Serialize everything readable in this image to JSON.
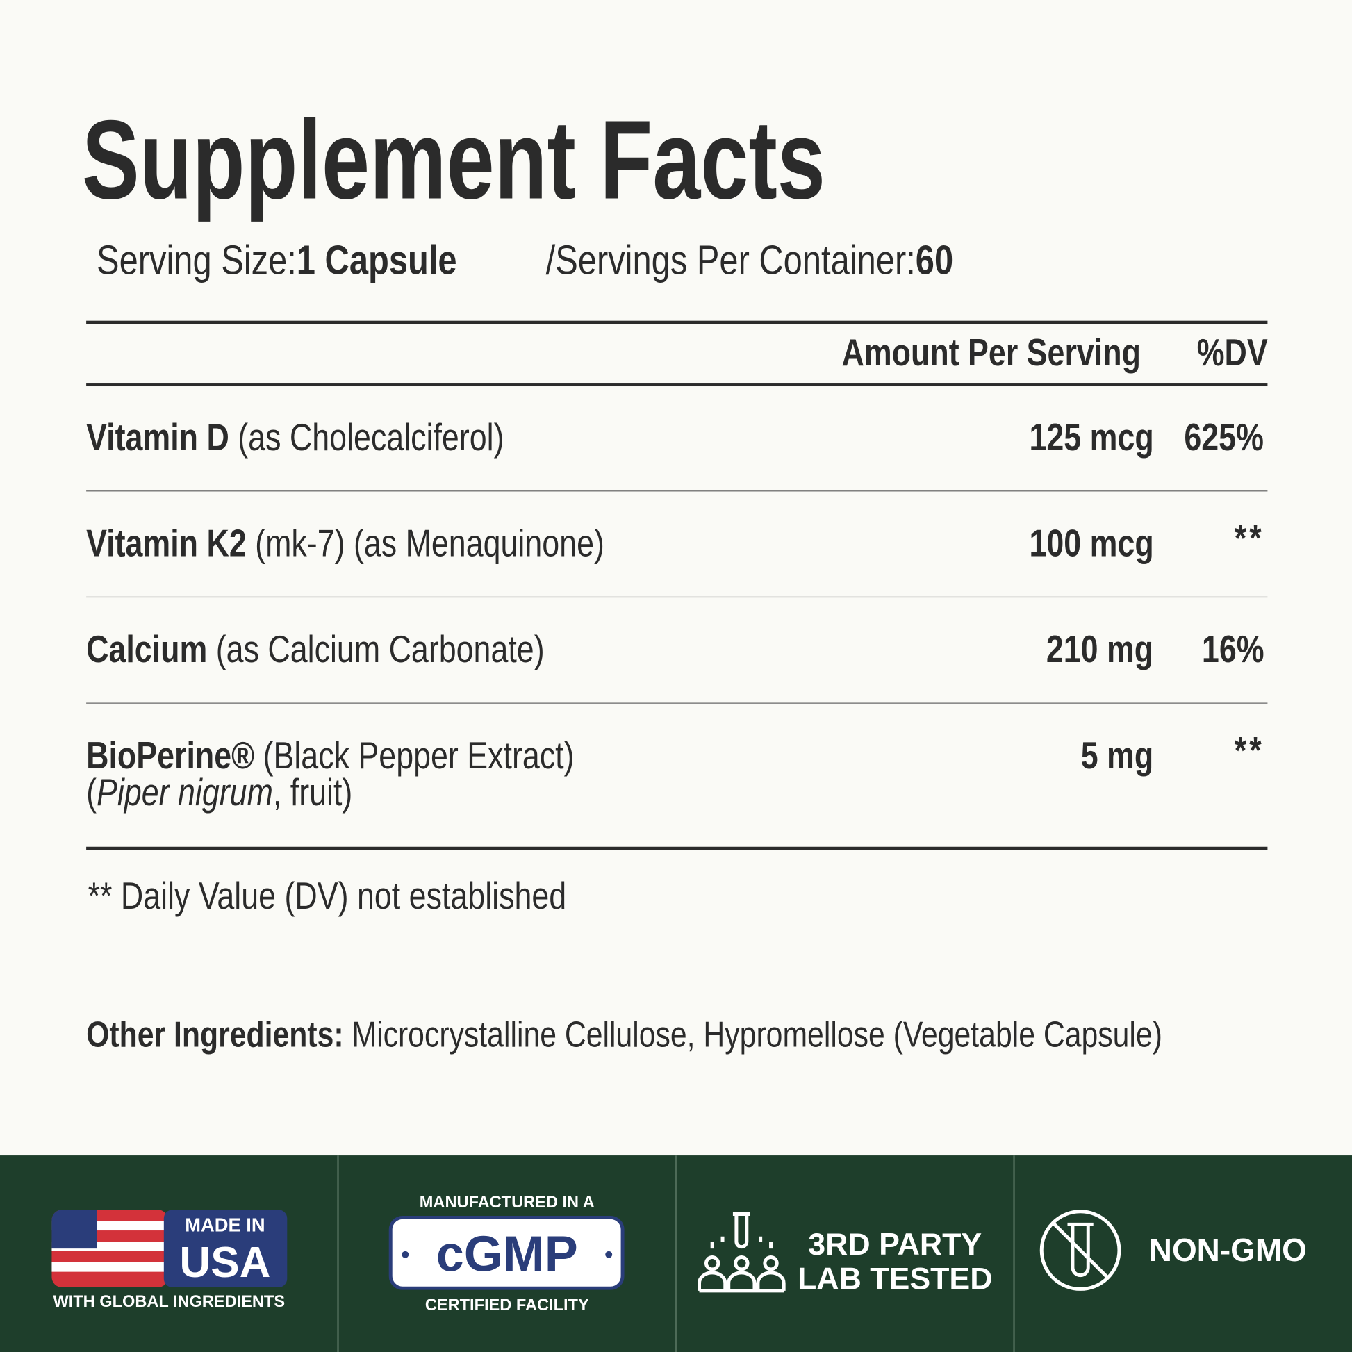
{
  "header": {
    "title": "Supplement Facts",
    "serving_size_label": "Serving Size:",
    "serving_size": "1 Capsule",
    "servings_label": "/Servings Per Container:",
    "servings": "60"
  },
  "table": {
    "columns": [
      "Amount Per Serving",
      "%DV"
    ],
    "rows": [
      {
        "name": "Vitamin D",
        "source": "(as Cholecalciferol)",
        "amount": "125 mcg",
        "dv": "625%"
      },
      {
        "name": "Vitamin K2",
        "source": "(mk-7) (as Menaquinone)",
        "amount": "100 mcg",
        "dv": "**"
      },
      {
        "name": "Calcium",
        "source": "(as Calcium Carbonate)",
        "amount": "210 mg",
        "dv": "16%"
      },
      {
        "name": "BioPerine®",
        "source": "(Black Pepper Extract)",
        "source_line2": [
          "(",
          "Piper nigrum",
          ", fruit)"
        ],
        "amount": "5 mg",
        "dv": "**"
      }
    ]
  },
  "footnote": "** Daily Value (DV) not established",
  "other_ingredients": {
    "label": "Other Ingredients:",
    "text": "Microcrystalline Cellulose, Hypromellose (Vegetable Capsule)"
  },
  "badges": [
    {
      "top": "MADE IN",
      "main": "USA",
      "bottom": "WITH GLOBAL INGREDIENTS"
    },
    {
      "top": "MANUFACTURED IN A",
      "main": "cGMP",
      "bottom": "CERTIFIED FACILITY"
    },
    {
      "line1": "3RD PARTY",
      "line2": "LAB TESTED"
    },
    {
      "label": "NON-GMO"
    }
  ]
}
